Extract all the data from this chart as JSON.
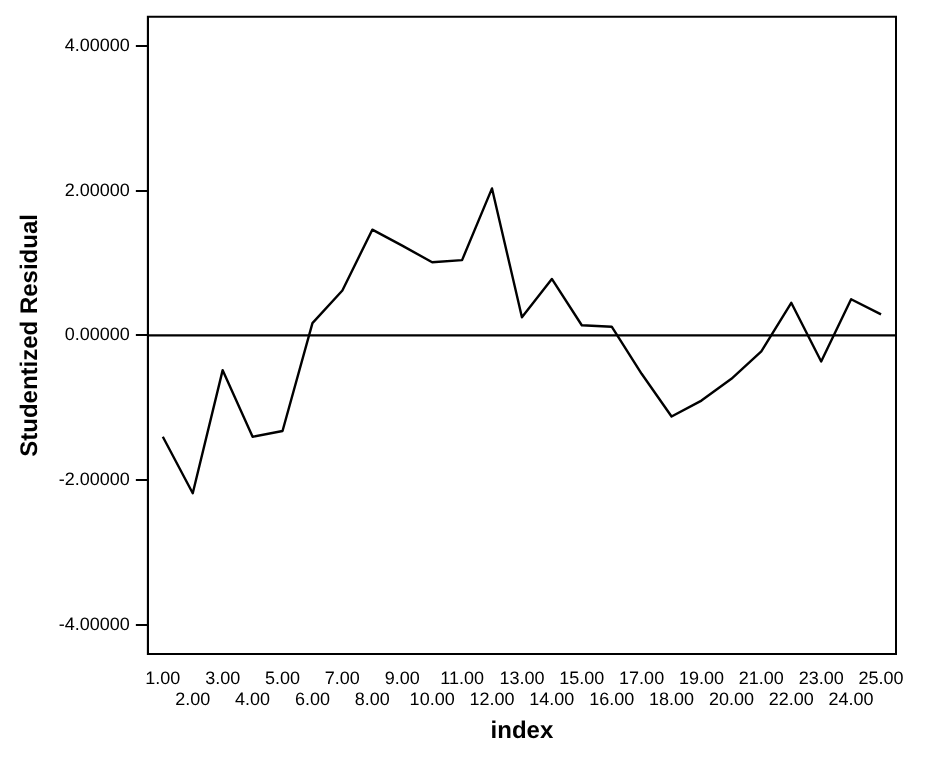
{
  "chart_data": {
    "type": "line",
    "xlabel": "index",
    "ylabel": "Studentized Residual",
    "categories": [
      "1.00",
      "2.00",
      "3.00",
      "4.00",
      "5.00",
      "6.00",
      "7.00",
      "8.00",
      "9.00",
      "10.00",
      "11.00",
      "12.00",
      "13.00",
      "14.00",
      "15.00",
      "16.00",
      "17.00",
      "18.00",
      "19.00",
      "20.00",
      "21.00",
      "22.00",
      "23.00",
      "24.00",
      "25.00"
    ],
    "series": [
      {
        "color": "#000000",
        "values": [
          -1.4,
          -2.18,
          -0.48,
          -1.4,
          -1.32,
          0.17,
          0.62,
          1.46,
          1.24,
          1.01,
          1.04,
          2.03,
          0.25,
          0.78,
          0.14,
          0.12,
          -0.53,
          -1.12,
          -0.9,
          -0.6,
          -0.22,
          0.45,
          -0.36,
          0.5,
          0.29
        ]
      }
    ],
    "ylim": [
      -4.4,
      4.4
    ],
    "yticks": [
      {
        "value": -4,
        "label": "-4.00000"
      },
      {
        "value": -2,
        "label": "-2.00000"
      },
      {
        "value": 0,
        "label": "0.00000"
      },
      {
        "value": 2,
        "label": "2.00000"
      },
      {
        "value": 4,
        "label": "4.00000"
      }
    ],
    "ref_lines": [
      {
        "axis": "y",
        "value": 0,
        "color": "#000000"
      }
    ],
    "grid": false,
    "legend": false,
    "marker": "none",
    "line_style": "solid"
  }
}
